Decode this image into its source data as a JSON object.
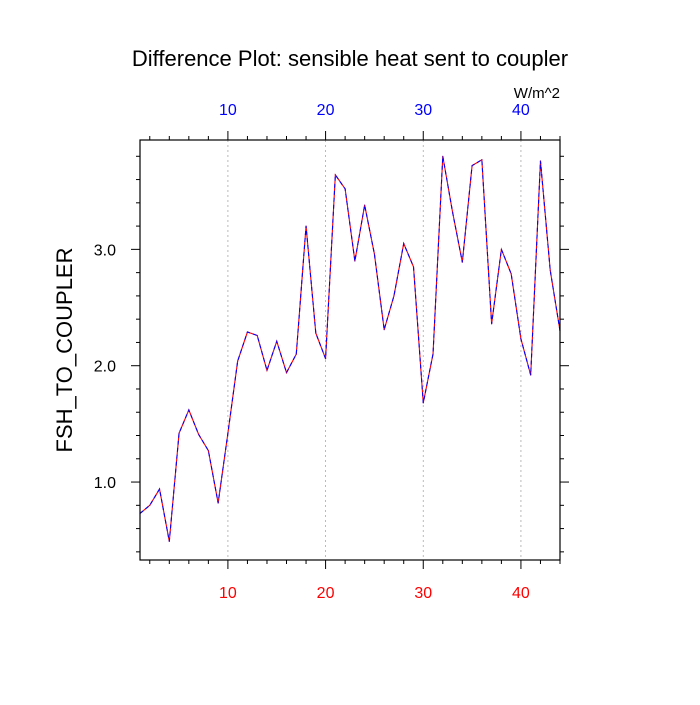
{
  "chart_data": {
    "type": "line",
    "title": "Difference Plot: sensible heat sent to coupler",
    "units": "W/m^2",
    "ylabel": "FSH_TO_COUPLER",
    "xlabel": "",
    "xlim": [
      1,
      44
    ],
    "ylim": [
      0.33,
      3.94
    ],
    "x_ticks": [
      10,
      20,
      30,
      40
    ],
    "y_ticks": [
      1.0,
      2.0,
      3.0
    ],
    "y_tick_labels": [
      "1.0",
      "2.0",
      "3.0"
    ],
    "x_tick_labels_bottom": [
      "10",
      "20",
      "30",
      "40"
    ],
    "x_tick_labels_top": [
      "10",
      "20",
      "30",
      "40"
    ],
    "grid": "vertical dashed",
    "colors": {
      "line_a": "#ff0000",
      "line_b": "#0000ff",
      "bottom_labels": "#ff0000",
      "top_labels": "#0000ff",
      "grid": "#aaaaaa"
    },
    "x": [
      1,
      2,
      3,
      4,
      5,
      6,
      7,
      8,
      9,
      10,
      11,
      12,
      13,
      14,
      15,
      16,
      17,
      18,
      19,
      20,
      21,
      22,
      23,
      24,
      25,
      26,
      27,
      28,
      29,
      30,
      31,
      32,
      33,
      34,
      35,
      36,
      37,
      38,
      39,
      40,
      41,
      42,
      43,
      44
    ],
    "series": [
      {
        "values": [
          0.73,
          0.8,
          0.94,
          0.49,
          1.42,
          1.62,
          1.41,
          1.27,
          0.82,
          1.42,
          2.04,
          2.29,
          2.26,
          1.96,
          2.21,
          1.94,
          2.1,
          3.2,
          2.28,
          2.06,
          3.64,
          3.52,
          2.9,
          3.38,
          2.96,
          2.31,
          2.6,
          3.05,
          2.85,
          1.68,
          2.1,
          3.8,
          3.32,
          2.89,
          3.72,
          3.77,
          2.36,
          3.0,
          2.79,
          2.23,
          1.92,
          3.76,
          2.82,
          2.3
        ]
      }
    ]
  }
}
